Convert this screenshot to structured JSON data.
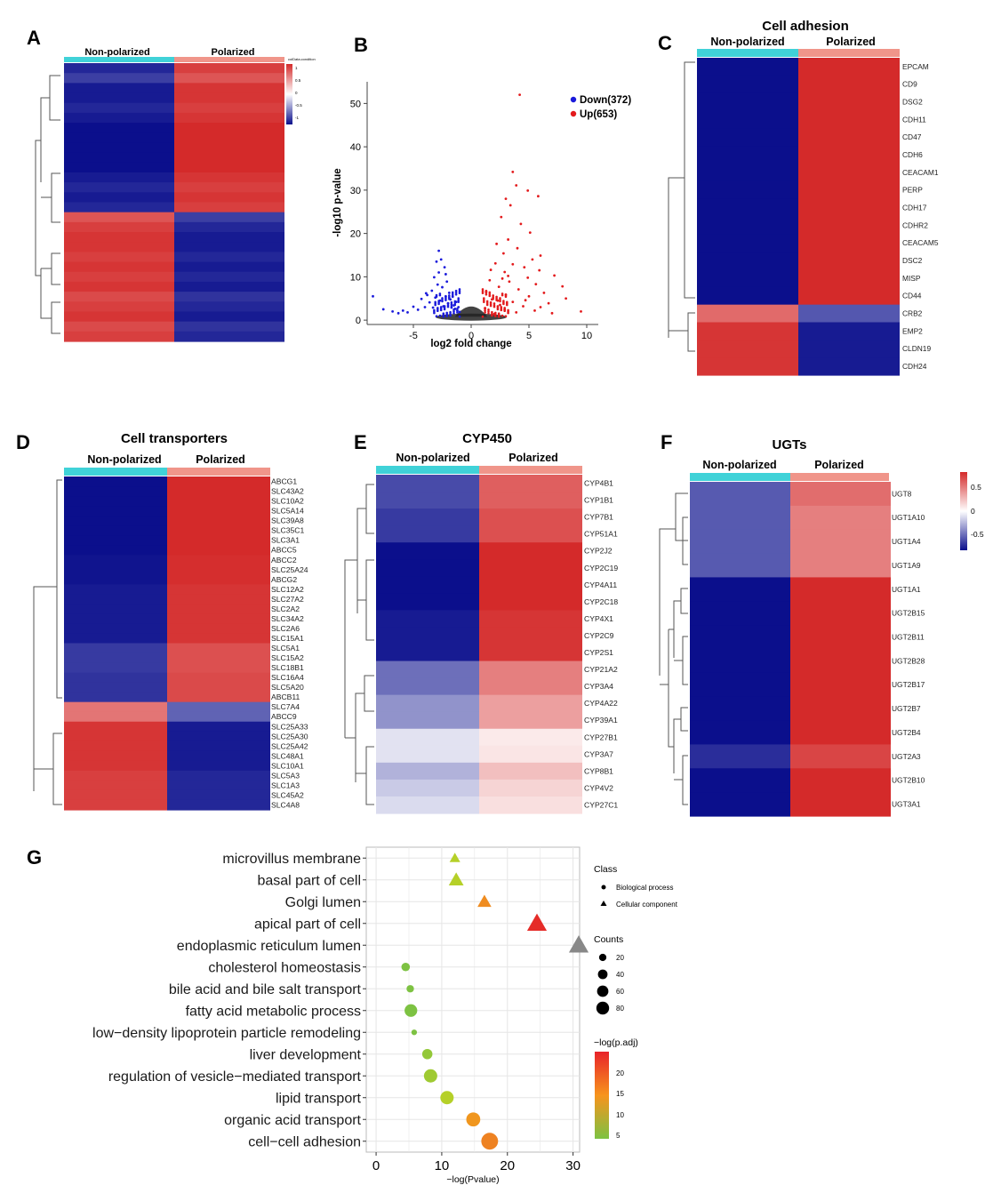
{
  "colors": {
    "up": "#d42a2a",
    "down": "#0b0f8c",
    "mid": "#ffffff",
    "grid": "#e6e6e6",
    "teal": "#40d2d8",
    "salmon": "#f0958a",
    "gray_point": "#222222"
  },
  "panels": {
    "A": {
      "letter": "A",
      "header_left": "Non-polarized",
      "header_right": "Polarized",
      "legend_title": "colData.condition",
      "legend_ticks": [
        "1",
        "0.5",
        "0",
        "-0.5",
        "-1"
      ]
    },
    "B": {
      "letter": "B",
      "legend": {
        "down": "Down(372)",
        "up": "Up(653)"
      }
    },
    "C": {
      "letter": "C",
      "title": "Cell adhesion",
      "header_left": "Non-polarized",
      "header_right": "Polarized"
    },
    "D": {
      "letter": "D",
      "title": "Cell transporters",
      "header_left": "Non-polarized",
      "header_right": "Polarized"
    },
    "E": {
      "letter": "E",
      "title": "CYP450",
      "header_left": "Non-polarized",
      "header_right": "Polarized"
    },
    "F": {
      "letter": "F",
      "title": "UGTs",
      "header_left": "Non-polarized",
      "header_right": "Polarized",
      "legend_ticks": [
        "0.5",
        "0",
        "-0.5"
      ]
    },
    "G": {
      "letter": "G",
      "legend": {
        "class_title": "Class",
        "class_items": [
          "Biological process",
          "Cellular component"
        ],
        "counts_title": "Counts",
        "counts_items": [
          "20",
          "40",
          "60",
          "80"
        ],
        "color_title": "−log(p.adj)",
        "color_ticks": [
          "20",
          "15",
          "10",
          "5"
        ]
      }
    }
  },
  "chart_data": [
    {
      "panel": "A",
      "type": "heatmap",
      "columns": [
        "Non-polarized",
        "Polarized"
      ],
      "row_values_nonpolarized": [
        -0.9,
        -0.8,
        -0.95,
        -0.95,
        -0.9,
        -0.95,
        -1,
        -1,
        -1,
        -1,
        -1,
        -0.95,
        -0.9,
        -0.95,
        -0.9,
        0.8,
        0.9,
        0.95,
        0.95,
        0.9,
        0.95,
        0.9,
        0.95,
        0.85,
        0.9,
        0.95,
        0.85,
        0.9
      ],
      "color_scale": [
        -1,
        1
      ]
    },
    {
      "panel": "B",
      "type": "scatter",
      "title": "",
      "xlabel": "log2 fold change",
      "ylabel": "-log10 p-value",
      "xlim": [
        -9,
        11
      ],
      "ylim": [
        -1,
        55
      ],
      "xticks": [
        -5,
        0,
        5,
        10
      ],
      "yticks": [
        0,
        10,
        20,
        30,
        40,
        50
      ],
      "series": [
        {
          "name": "Down(372)",
          "points": [
            [
              -8.5,
              5.5
            ],
            [
              -7.6,
              2.5
            ],
            [
              -6.8,
              2.0
            ],
            [
              -6.3,
              1.6
            ],
            [
              -5.9,
              2.2
            ],
            [
              -5.5,
              1.8
            ],
            [
              -5.0,
              3.1
            ],
            [
              -4.6,
              2.4
            ],
            [
              -4.3,
              4.9
            ],
            [
              -4.0,
              3.0
            ],
            [
              -3.8,
              5.8
            ],
            [
              -3.6,
              4.1
            ],
            [
              -3.4,
              6.8
            ],
            [
              -3.2,
              9.9
            ],
            [
              -3.1,
              5.2
            ],
            [
              -3.0,
              13.5
            ],
            [
              -2.9,
              8.2
            ],
            [
              -2.8,
              11.0
            ],
            [
              -2.7,
              4.5
            ],
            [
              -2.6,
              14.0
            ],
            [
              -2.5,
              7.6
            ],
            [
              -2.4,
              3.2
            ],
            [
              -2.3,
              12.2
            ],
            [
              -2.2,
              5.5
            ],
            [
              -2.1,
              8.9
            ],
            [
              -2.0,
              3.9
            ],
            [
              -1.9,
              6.3
            ],
            [
              -1.8,
              4.8
            ],
            [
              -1.7,
              2.9
            ],
            [
              -1.6,
              5.4
            ],
            [
              -1.5,
              3.4
            ],
            [
              -1.4,
              2.6
            ],
            [
              -1.3,
              4.2
            ],
            [
              -1.2,
              2.2
            ],
            [
              -1.1,
              3.0
            ],
            [
              -1.0,
              1.9
            ],
            [
              -3.3,
              2.9
            ],
            [
              -3.9,
              6.2
            ],
            [
              -2.2,
              10.6
            ],
            [
              -2.8,
              16.0
            ]
          ]
        },
        {
          "name": "Up(653)",
          "points": [
            [
              4.2,
              52.0
            ],
            [
              3.6,
              34.2
            ],
            [
              3.9,
              31.1
            ],
            [
              4.9,
              29.9
            ],
            [
              5.8,
              28.6
            ],
            [
              3.0,
              28.0
            ],
            [
              3.4,
              26.5
            ],
            [
              2.6,
              23.8
            ],
            [
              4.3,
              22.2
            ],
            [
              5.1,
              20.2
            ],
            [
              3.2,
              18.6
            ],
            [
              2.2,
              17.6
            ],
            [
              4.0,
              16.6
            ],
            [
              2.8,
              15.4
            ],
            [
              6.0,
              14.9
            ],
            [
              5.3,
              14.0
            ],
            [
              2.1,
              13.1
            ],
            [
              3.6,
              12.9
            ],
            [
              4.6,
              12.2
            ],
            [
              1.7,
              11.6
            ],
            [
              2.9,
              11.1
            ],
            [
              7.2,
              10.3
            ],
            [
              4.9,
              9.8
            ],
            [
              1.6,
              9.2
            ],
            [
              3.3,
              8.9
            ],
            [
              5.6,
              8.3
            ],
            [
              7.9,
              7.8
            ],
            [
              2.4,
              7.7
            ],
            [
              4.1,
              7.1
            ],
            [
              1.3,
              6.6
            ],
            [
              6.3,
              6.3
            ],
            [
              3.0,
              5.9
            ],
            [
              5.0,
              5.5
            ],
            [
              8.2,
              5.0
            ],
            [
              1.8,
              4.8
            ],
            [
              3.6,
              4.2
            ],
            [
              6.7,
              3.9
            ],
            [
              2.5,
              3.5
            ],
            [
              4.5,
              3.2
            ],
            [
              9.5,
              2.0
            ],
            [
              1.2,
              2.8
            ],
            [
              2.9,
              2.4
            ],
            [
              5.5,
              2.2
            ],
            [
              3.9,
              1.8
            ],
            [
              7.0,
              1.6
            ],
            [
              2.0,
              1.4
            ],
            [
              6.0,
              3.0
            ],
            [
              4.7,
              4.6
            ],
            [
              3.2,
              10.2
            ],
            [
              2.7,
              9.6
            ],
            [
              5.9,
              11.5
            ],
            [
              2.3,
              4.5
            ]
          ]
        }
      ]
    },
    {
      "panel": "C",
      "type": "heatmap",
      "title": "Cell adhesion",
      "columns": [
        "Non-polarized",
        "Polarized"
      ],
      "genes": [
        "EPCAM",
        "CD9",
        "DSG2",
        "CDH11",
        "CD47",
        "CDH6",
        "CEACAM1",
        "PERP",
        "CDH17",
        "CDHR2",
        "CEACAM5",
        "DSC2",
        "MISP",
        "CD44",
        "CRB2",
        "EMP2",
        "CLDN19",
        "CDH24"
      ],
      "nonpolarized": [
        -1,
        -1,
        -1,
        -1,
        -1,
        -1,
        -1,
        -1,
        -1,
        -1,
        -1,
        -1,
        -1,
        -1,
        0.7,
        0.95,
        0.95,
        0.95
      ],
      "polarized": [
        1,
        1,
        1,
        1,
        1,
        1,
        1,
        1,
        1,
        1,
        1,
        1,
        1,
        1,
        -0.7,
        -0.95,
        -0.95,
        -0.95
      ]
    },
    {
      "panel": "D",
      "type": "heatmap",
      "title": "Cell transporters",
      "columns": [
        "Non-polarized",
        "Polarized"
      ],
      "genes": [
        "ABCG1",
        "SLC43A2",
        "SLC10A2",
        "SLC5A14",
        "SLC39A8",
        "SLC35C1",
        "SLC3A1",
        "ABCC5",
        "ABCC2",
        "SLC25A24",
        "ABCG2",
        "SLC12A2",
        "SLC27A2",
        "SLC2A2",
        "SLC34A2",
        "SLC2A6",
        "SLC15A1",
        "SLC5A1",
        "SLC15A2",
        "SLC18B1",
        "SLC16A4",
        "SLC5A20",
        "ABCB11",
        "SLC7A4",
        "ABCC9",
        "SLC25A33",
        "SLC25A30",
        "SLC25A42",
        "SLC48A1",
        "SLC10A1",
        "SLC5A3",
        "SLC1A3",
        "SLC45A2",
        "SLC4A8"
      ],
      "nonpolarized": [
        -1,
        -1,
        -1,
        -1,
        -1,
        -1,
        -1,
        -1,
        -0.98,
        -0.98,
        -0.98,
        -0.95,
        -0.95,
        -0.95,
        -0.95,
        -0.95,
        -0.95,
        -0.82,
        -0.82,
        -0.82,
        -0.85,
        -0.85,
        -0.85,
        0.65,
        0.65,
        0.95,
        0.95,
        0.95,
        0.95,
        0.95,
        0.9,
        0.9,
        0.9,
        0.9
      ],
      "polarized": [
        1,
        1,
        1,
        1,
        1,
        1,
        1,
        1,
        0.98,
        0.98,
        0.98,
        0.95,
        0.95,
        0.95,
        0.95,
        0.95,
        0.95,
        0.82,
        0.82,
        0.82,
        0.85,
        0.85,
        0.85,
        -0.65,
        -0.65,
        -0.95,
        -0.95,
        -0.95,
        -0.95,
        -0.95,
        -0.9,
        -0.9,
        -0.9,
        -0.9
      ]
    },
    {
      "panel": "E",
      "type": "heatmap",
      "title": "CYP450",
      "columns": [
        "Non-polarized",
        "Polarized"
      ],
      "genes": [
        "CYP4B1",
        "CYP1B1",
        "CYP7B1",
        "CYP51A1",
        "CYP2J2",
        "CYP2C19",
        "CYP4A11",
        "CYP2C18",
        "CYP4X1",
        "CYP2C9",
        "CYP2S1",
        "CYP21A2",
        "CYP3A4",
        "CYP4A22",
        "CYP39A1",
        "CYP27B1",
        "CYP3A7",
        "CYP8B1",
        "CYP4V2",
        "CYP27C1"
      ],
      "nonpolarized": [
        -0.75,
        -0.75,
        -0.82,
        -0.82,
        -1,
        -1,
        -1,
        -1,
        -0.95,
        -0.95,
        -0.95,
        -0.6,
        -0.6,
        -0.45,
        -0.45,
        -0.12,
        -0.12,
        -0.32,
        -0.22,
        -0.15
      ],
      "polarized": [
        0.75,
        0.75,
        0.82,
        0.82,
        1,
        1,
        1,
        1,
        0.95,
        0.95,
        0.95,
        0.6,
        0.6,
        0.45,
        0.45,
        0.1,
        0.12,
        0.3,
        0.2,
        0.15
      ]
    },
    {
      "panel": "F",
      "type": "heatmap",
      "title": "UGTs",
      "columns": [
        "Non-polarized",
        "Polarized"
      ],
      "genes": [
        "UGT8",
        "UGT1A10",
        "UGT1A4",
        "UGT1A9",
        "UGT1A1",
        "UGT2B15",
        "UGT2B11",
        "UGT2B28",
        "UGT2B17",
        "UGT2B7",
        "UGT2B4",
        "UGT2A3",
        "UGT2B10",
        "UGT3A1"
      ],
      "nonpolarized": [
        -0.55,
        -0.55,
        -0.55,
        -0.55,
        -0.95,
        -0.95,
        -1,
        -1,
        -1,
        -0.85,
        -0.85,
        -0.7,
        -0.8,
        -0.8
      ],
      "polarized": [
        0.55,
        0.48,
        0.48,
        0.48,
        0.95,
        0.95,
        1,
        1,
        1,
        0.85,
        0.85,
        0.7,
        0.8,
        0.8
      ],
      "color_range": [
        -0.8,
        0.8
      ]
    },
    {
      "panel": "G",
      "type": "scatter",
      "title": "",
      "xlabel": "−log(Pvalue)",
      "xlim": [
        -1.5,
        31
      ],
      "xticks": [
        0,
        10,
        20,
        30
      ],
      "terms": [
        "microvillus membrane",
        "basal part of cell",
        "Golgi lumen",
        "apical part of cell",
        "endoplasmic reticulum lumen",
        "cholesterol homeostasis",
        "bile acid and bile salt transport",
        "fatty acid metabolic process",
        "low−density lipoprotein particle remodeling",
        "liver development",
        "regulation of vesicle−mediated transport",
        "lipid transport",
        "organic acid transport",
        "cell−cell adhesion"
      ],
      "points": [
        {
          "term": "microvillus membrane",
          "x": 12,
          "count": 12,
          "padj": 10,
          "class": "Cellular component"
        },
        {
          "term": "basal part of cell",
          "x": 12.2,
          "count": 30,
          "padj": 10,
          "class": "Cellular component"
        },
        {
          "term": "Golgi lumen",
          "x": 16.5,
          "count": 25,
          "padj": 16,
          "class": "Cellular component"
        },
        {
          "term": "apical part of cell",
          "x": 24.5,
          "count": 60,
          "padj": 24,
          "class": "Cellular component"
        },
        {
          "term": "endoplasmic reticulum lumen",
          "x": 31.5,
          "count": 60,
          "padj": null,
          "class": "Cellular component"
        },
        {
          "term": "cholesterol homeostasis",
          "x": 4.5,
          "count": 12,
          "padj": 5,
          "class": "Biological process"
        },
        {
          "term": "bile acid and bile salt transport",
          "x": 5.2,
          "count": 8,
          "padj": 5,
          "class": "Biological process"
        },
        {
          "term": "fatty acid metabolic process",
          "x": 5.3,
          "count": 35,
          "padj": 5,
          "class": "Biological process"
        },
        {
          "term": "low−density lipoprotein particle remodeling",
          "x": 5.8,
          "count": 3,
          "padj": 5,
          "class": "Biological process"
        },
        {
          "term": "liver development",
          "x": 7.8,
          "count": 20,
          "padj": 7,
          "class": "Biological process"
        },
        {
          "term": "regulation of vesicle−mediated transport",
          "x": 8.3,
          "count": 40,
          "padj": 8,
          "class": "Biological process"
        },
        {
          "term": "lipid transport",
          "x": 10.8,
          "count": 40,
          "padj": 10,
          "class": "Biological process"
        },
        {
          "term": "organic acid transport",
          "x": 14.8,
          "count": 45,
          "padj": 15,
          "class": "Biological process"
        },
        {
          "term": "cell−cell adhesion",
          "x": 17.3,
          "count": 70,
          "padj": 17,
          "class": "Biological process"
        }
      ]
    }
  ]
}
